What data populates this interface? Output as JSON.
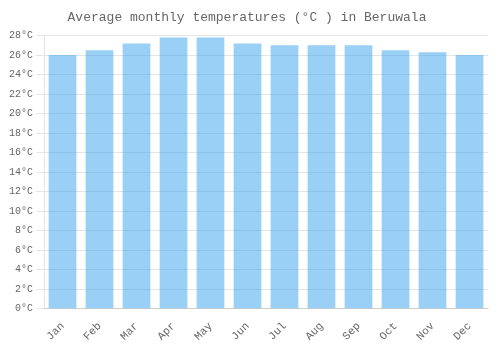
{
  "chart_data": {
    "type": "bar",
    "title": "Average monthly temperatures (°C ) in Beruwala",
    "categories": [
      "Jan",
      "Feb",
      "Mar",
      "Apr",
      "May",
      "Jun",
      "Jul",
      "Aug",
      "Sep",
      "Oct",
      "Nov",
      "Dec"
    ],
    "values": [
      26.0,
      26.5,
      27.2,
      27.8,
      27.8,
      27.2,
      27.0,
      27.0,
      27.0,
      26.5,
      26.3,
      26.0
    ],
    "ylim": [
      0,
      28
    ],
    "yticks": [
      {
        "value": 0,
        "label": "0°C"
      },
      {
        "value": 2,
        "label": "2°C"
      },
      {
        "value": 4,
        "label": "4°C"
      },
      {
        "value": 6,
        "label": "6°C"
      },
      {
        "value": 8,
        "label": "8°C"
      },
      {
        "value": 10,
        "label": "10°C"
      },
      {
        "value": 12,
        "label": "12°C"
      },
      {
        "value": 14,
        "label": "14°C"
      },
      {
        "value": 16,
        "label": "16°C"
      },
      {
        "value": 18,
        "label": "18°C"
      },
      {
        "value": 20,
        "label": "20°C"
      },
      {
        "value": 22,
        "label": "22°C"
      },
      {
        "value": 24,
        "label": "24°C"
      },
      {
        "value": 26,
        "label": "26°C"
      },
      {
        "value": 28,
        "label": "28°C"
      }
    ],
    "grid": true
  }
}
